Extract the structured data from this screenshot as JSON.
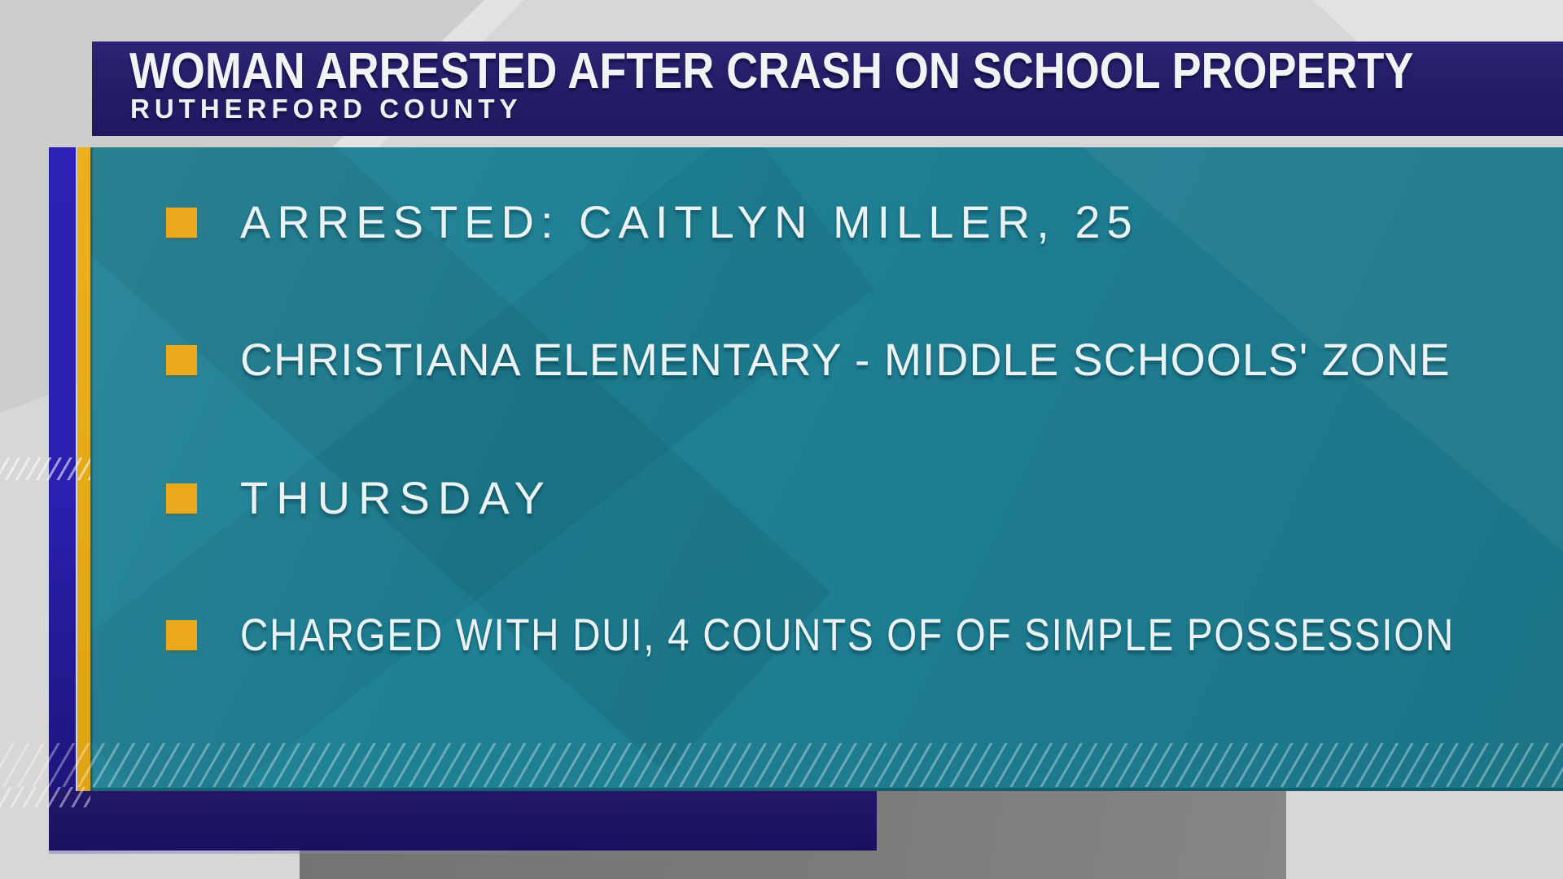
{
  "banner": {
    "headline": "WOMAN ARRESTED AFTER CRASH ON SCHOOL PROPERTY",
    "subline": "RUTHERFORD COUNTY"
  },
  "bullets": {
    "items": [
      {
        "label": "ARRESTED: CAITLYN MILLER, 25"
      },
      {
        "label": "CHRISTIANA ELEMENTARY - MIDDLE SCHOOLS' ZONE"
      },
      {
        "label": "THURSDAY"
      },
      {
        "label": "CHARGED WITH DUI, 4 COUNTS OF OF SIMPLE POSSESSION"
      }
    ]
  },
  "colors": {
    "banner_navy": "#241e68",
    "panel_teal": "#1f8094",
    "accent_gold": "#eca81d",
    "left_bar_blue": "#2a1fae",
    "bottom_bar_navy": "#1d1366",
    "headline_white": "#f3f3f6",
    "bullet_text_white": "#eaf2f3",
    "backdrop_gray": "#d7d7d5",
    "backdrop_shadow_gray": "#7b7b79"
  }
}
